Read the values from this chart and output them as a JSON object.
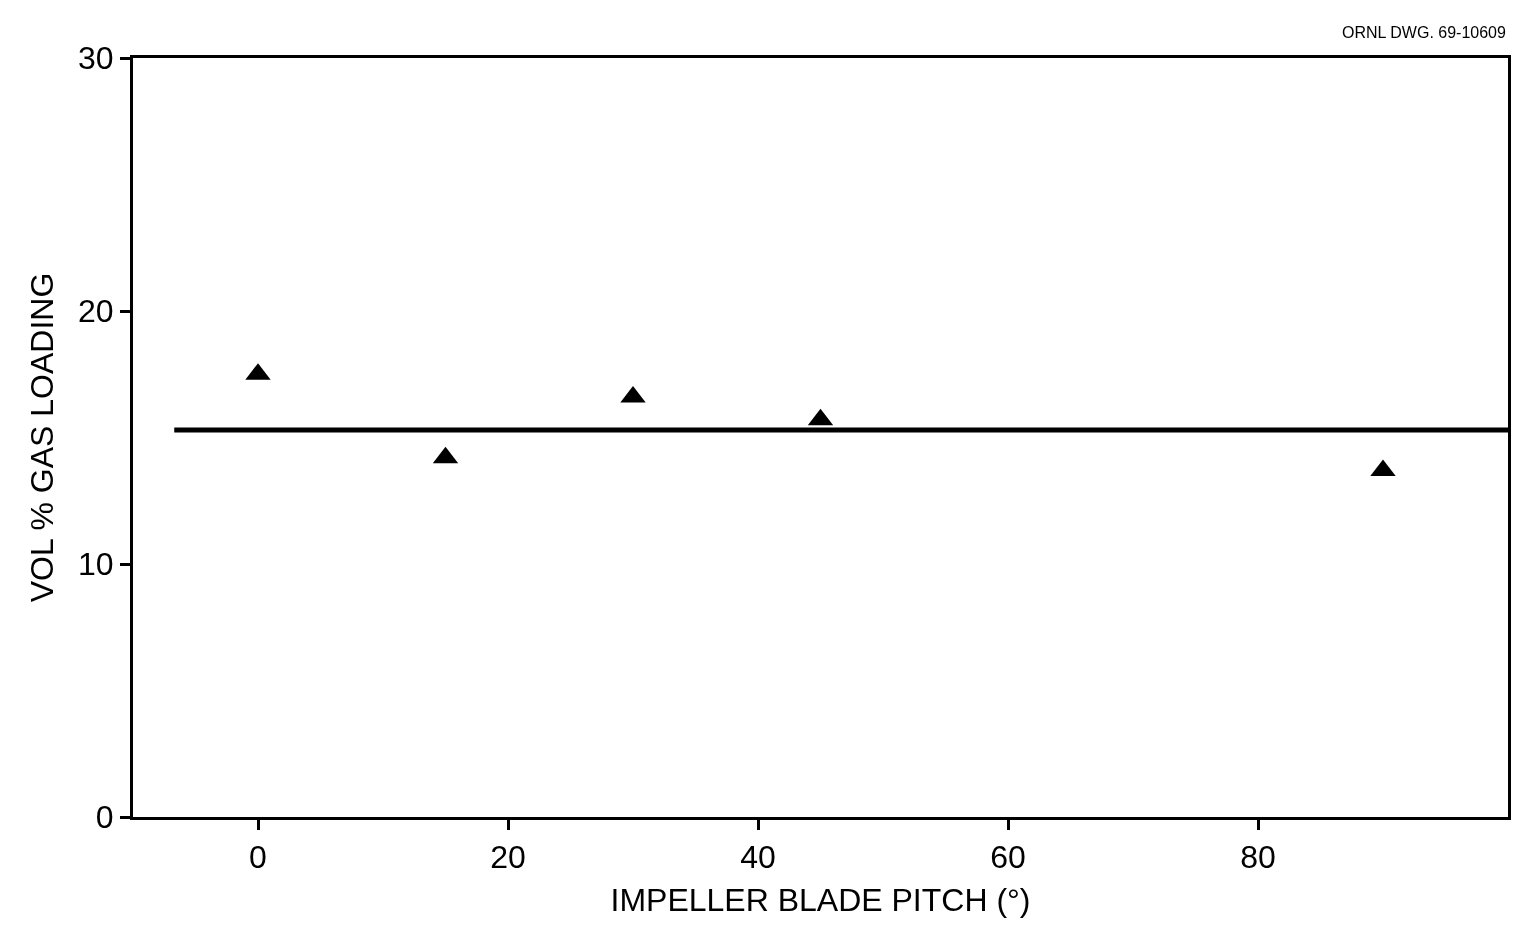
{
  "chart_data": {
    "type": "scatter",
    "xlabel": "IMPELLER BLADE PITCH (°)",
    "ylabel": "VOL % GAS LOADING",
    "annotations": [
      "ORNL DWG. 69-10609"
    ],
    "x": [
      0,
      15,
      30,
      45,
      90
    ],
    "series": [
      {
        "color": "#000000",
        "values": [
          17.5,
          14.2,
          16.6,
          15.7,
          13.7
        ]
      }
    ],
    "marker": "triangle",
    "xlim": [
      -10,
      100
    ],
    "xticks": [
      0,
      20,
      40,
      60,
      80
    ],
    "ylim": [
      0,
      30
    ],
    "yticks": [
      0,
      10,
      20,
      30
    ],
    "ref_lines": [
      {
        "axis": "y",
        "value": 15.3,
        "color": "#000000",
        "line_style": "solid"
      }
    ],
    "grid": false
  }
}
